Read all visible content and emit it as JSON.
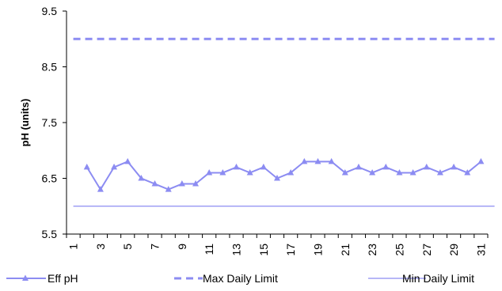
{
  "colors": {
    "series": "#8C8CF2",
    "axis": "#000000",
    "background": "#FFFFFF"
  },
  "chart_data": {
    "type": "line",
    "title": "",
    "xlabel": "",
    "ylabel": "pH (units)",
    "ylim": [
      5.5,
      9.5
    ],
    "xlim": [
      1,
      31
    ],
    "grid": false,
    "legend_position": "bottom",
    "yticks": [
      "5.5",
      "6.5",
      "7.5",
      "8.5",
      "9.5"
    ],
    "xticks": [
      "1",
      "3",
      "5",
      "7",
      "9",
      "11",
      "13",
      "15",
      "17",
      "19",
      "21",
      "23",
      "25",
      "27",
      "29",
      "31"
    ],
    "x": [
      2,
      3,
      4,
      5,
      6,
      7,
      8,
      9,
      10,
      11,
      12,
      13,
      14,
      15,
      16,
      17,
      18,
      19,
      20,
      21,
      22,
      23,
      24,
      25,
      26,
      27,
      28,
      29,
      30,
      31
    ],
    "series": [
      {
        "name": "Eff pH",
        "style": "line-triangle",
        "values": [
          6.7,
          6.3,
          6.7,
          6.8,
          6.5,
          6.4,
          6.3,
          6.4,
          6.4,
          6.6,
          6.6,
          6.7,
          6.6,
          6.7,
          6.5,
          6.6,
          6.8,
          6.8,
          6.8,
          6.6,
          6.7,
          6.6,
          6.7,
          6.6,
          6.6,
          6.7,
          6.6,
          6.7,
          6.6,
          6.8
        ]
      },
      {
        "name": "Max Daily Limit",
        "style": "dashed",
        "x": [
          1,
          32
        ],
        "values": [
          9.0,
          9.0
        ]
      },
      {
        "name": "Min Daily Limit",
        "style": "solid",
        "x": [
          1,
          32
        ],
        "values": [
          6.0,
          6.0
        ]
      }
    ]
  }
}
